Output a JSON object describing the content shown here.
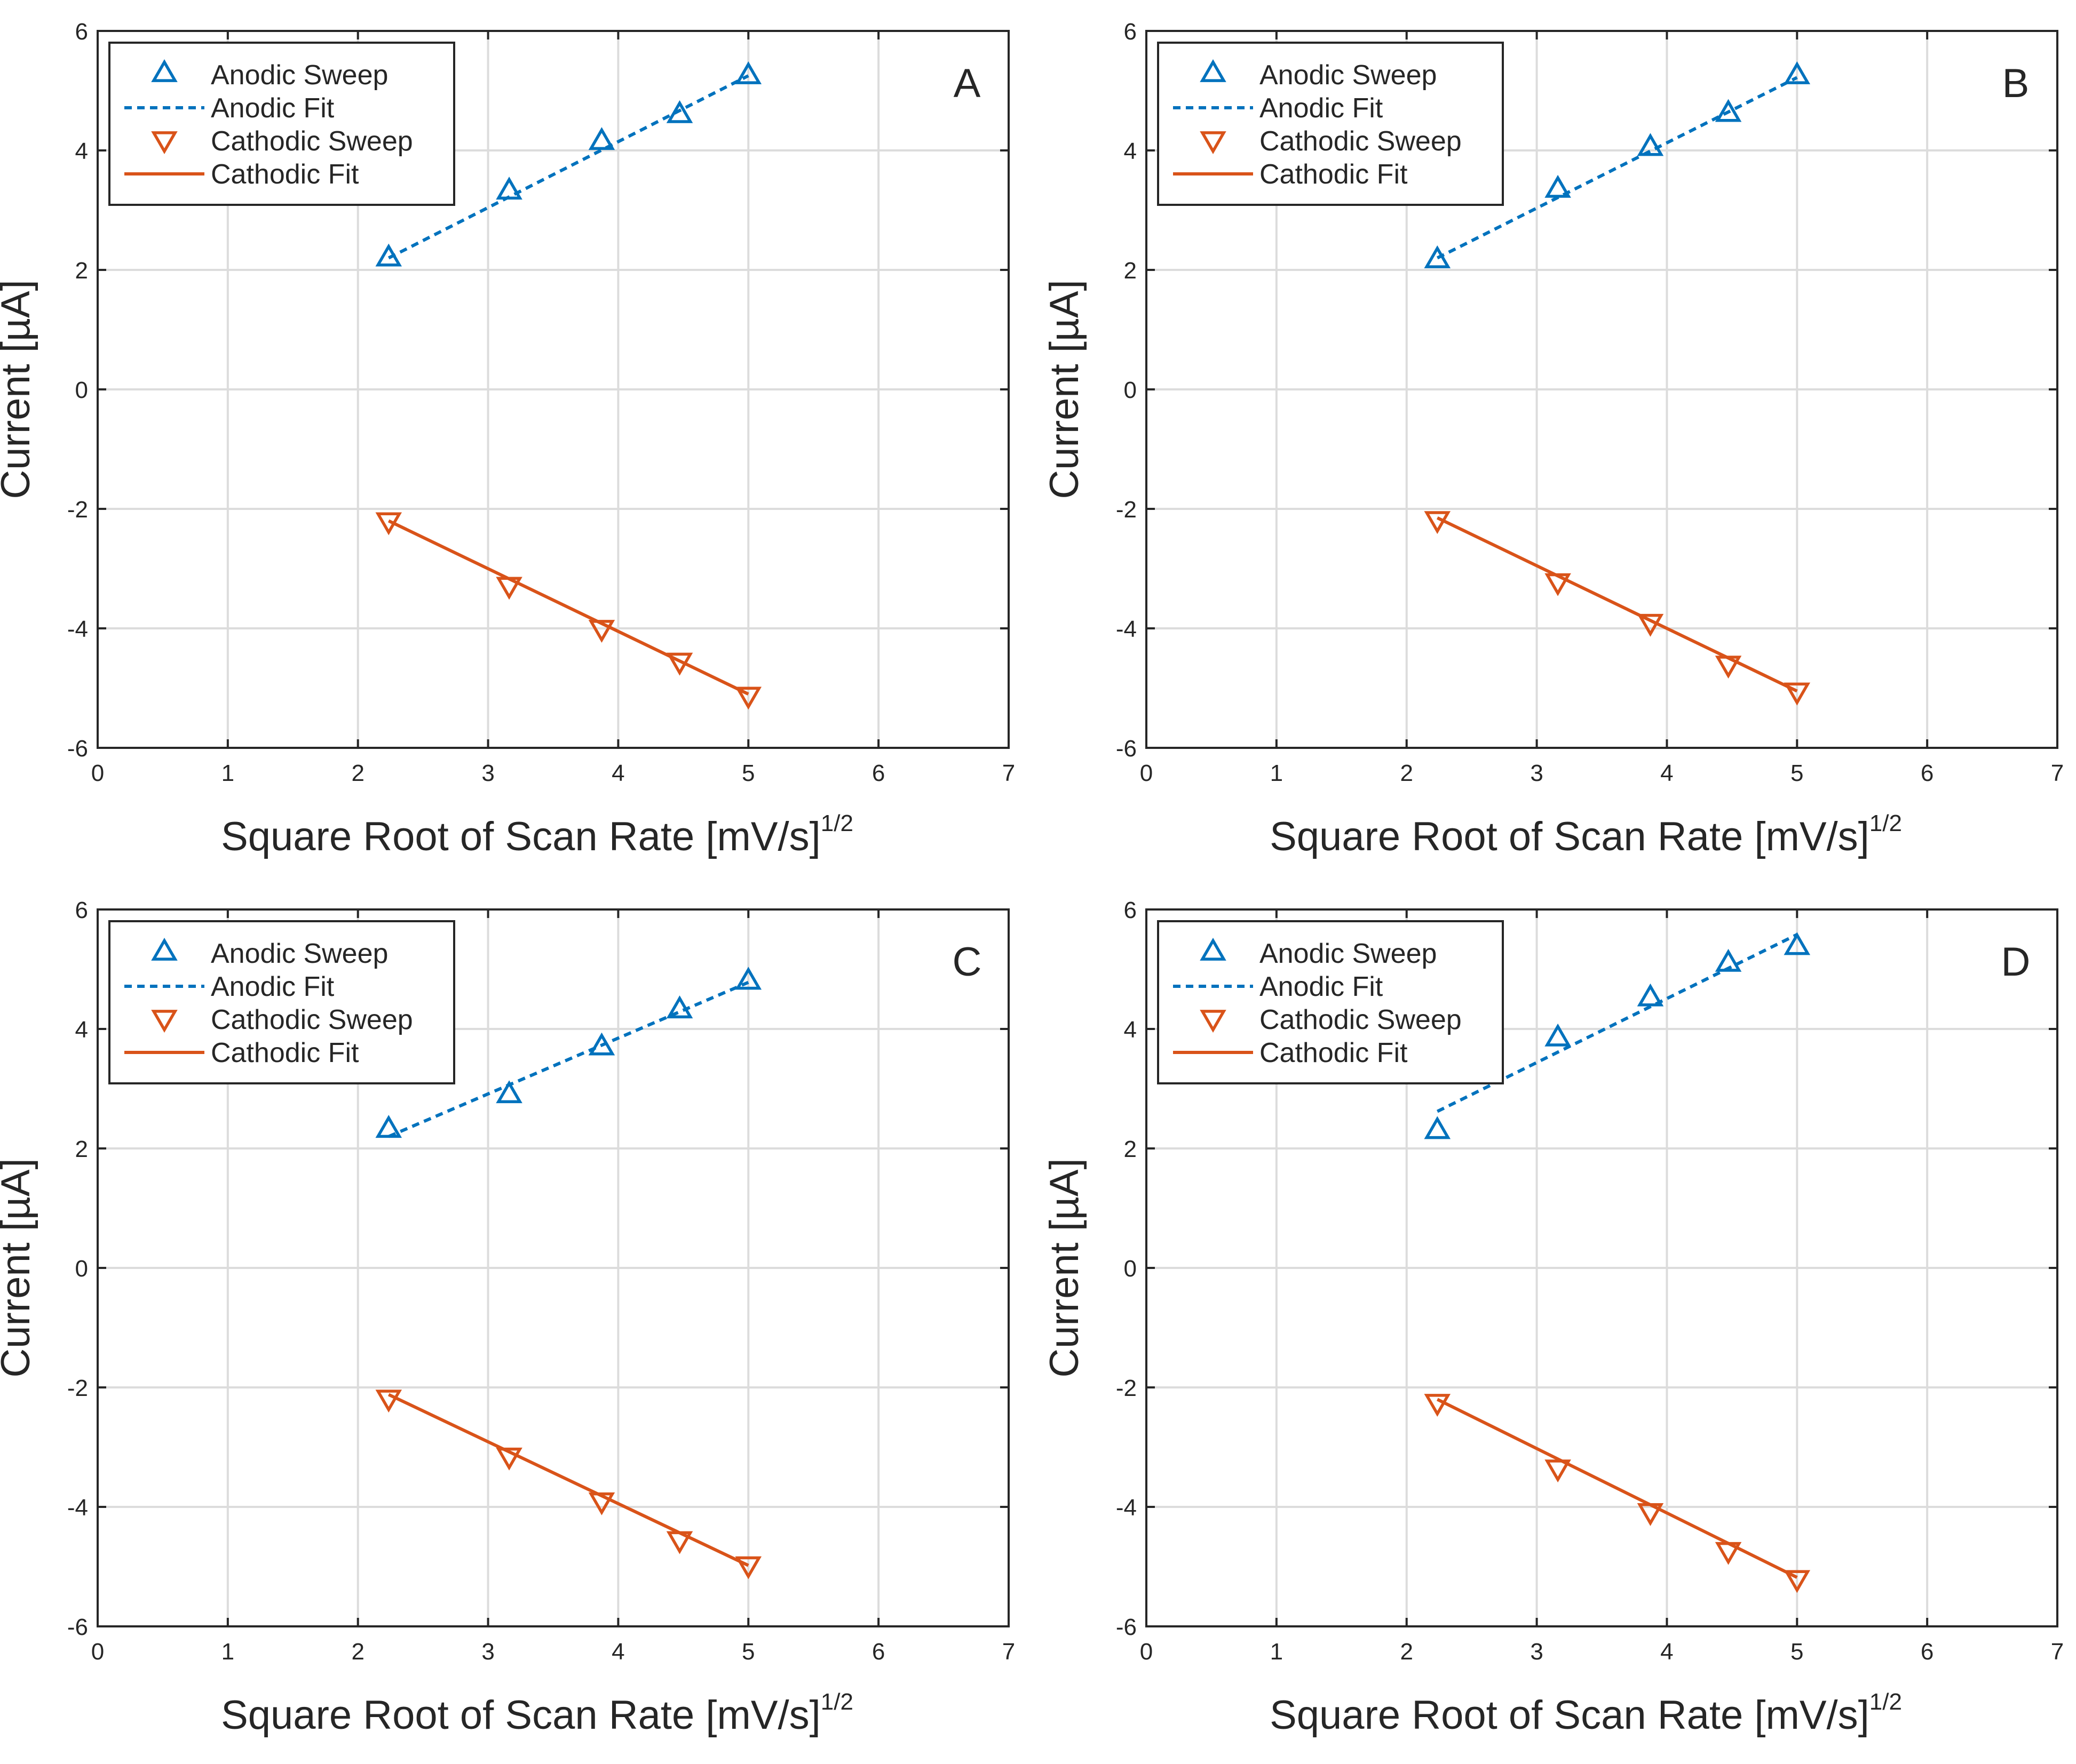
{
  "colors": {
    "anodic": "#0072BD",
    "cathodic": "#D95319",
    "grid": "#dcdcdc",
    "axis": "#262626"
  },
  "chart_data": [
    {
      "type": "scatter",
      "panel": "A",
      "xlabel": "Square Root of Scan Rate [mV/s]",
      "xlabel_sup": "1/2",
      "ylabel": "Current [µA]",
      "xlim": [
        0,
        7
      ],
      "ylim": [
        -6,
        6
      ],
      "xticks": [
        "0",
        "1",
        "2",
        "3",
        "4",
        "5",
        "6",
        "7"
      ],
      "yticks": [
        "-6",
        "-4",
        "-2",
        "0",
        "2",
        "4",
        "6"
      ],
      "grid": true,
      "legend_position": "top-left",
      "series": [
        {
          "name": "Anodic Sweep",
          "kind": "markers",
          "marker": "triangle-up",
          "color": "anodic",
          "x": [
            2.236,
            3.162,
            3.873,
            4.472,
            5.0
          ],
          "y": [
            2.2,
            3.32,
            4.15,
            4.6,
            5.25
          ]
        },
        {
          "name": "Anodic Fit",
          "kind": "dashed-line",
          "color": "anodic",
          "x": [
            2.236,
            5.0
          ],
          "y": [
            2.2,
            5.25
          ]
        },
        {
          "name": "Cathodic Sweep",
          "kind": "markers",
          "marker": "triangle-down",
          "color": "cathodic",
          "x": [
            2.236,
            3.162,
            3.873,
            4.472,
            5.0
          ],
          "y": [
            -2.2,
            -3.28,
            -4.0,
            -4.55,
            -5.12
          ]
        },
        {
          "name": "Cathodic Fit",
          "kind": "solid-line",
          "color": "cathodic",
          "x": [
            2.236,
            5.0
          ],
          "y": [
            -2.2,
            -5.1
          ]
        }
      ]
    },
    {
      "type": "scatter",
      "panel": "B",
      "xlabel": "Square Root of Scan Rate [mV/s]",
      "xlabel_sup": "1/2",
      "ylabel": "Current [µA]",
      "xlim": [
        0,
        7
      ],
      "ylim": [
        -6,
        6
      ],
      "xticks": [
        "0",
        "1",
        "2",
        "3",
        "4",
        "5",
        "6",
        "7"
      ],
      "yticks": [
        "-6",
        "-4",
        "-2",
        "0",
        "2",
        "4",
        "6"
      ],
      "grid": true,
      "legend_position": "top-left",
      "series": [
        {
          "name": "Anodic Sweep",
          "kind": "markers",
          "marker": "triangle-up",
          "color": "anodic",
          "x": [
            2.236,
            3.162,
            3.873,
            4.472,
            5.0
          ],
          "y": [
            2.17,
            3.35,
            4.05,
            4.62,
            5.25
          ]
        },
        {
          "name": "Anodic Fit",
          "kind": "dashed-line",
          "color": "anodic",
          "x": [
            2.236,
            5.0
          ],
          "y": [
            2.2,
            5.22
          ]
        },
        {
          "name": "Cathodic Sweep",
          "kind": "markers",
          "marker": "triangle-down",
          "color": "cathodic",
          "x": [
            2.236,
            3.162,
            3.873,
            4.472,
            5.0
          ],
          "y": [
            -2.18,
            -3.22,
            -3.9,
            -4.6,
            -5.05
          ]
        },
        {
          "name": "Cathodic Fit",
          "kind": "solid-line",
          "color": "cathodic",
          "x": [
            2.236,
            5.0
          ],
          "y": [
            -2.15,
            -5.05
          ]
        }
      ]
    },
    {
      "type": "scatter",
      "panel": "C",
      "xlabel": "Square Root of Scan Rate [mV/s]",
      "xlabel_sup": "1/2",
      "ylabel": "Current [µA]",
      "xlim": [
        0,
        7
      ],
      "ylim": [
        -6,
        6
      ],
      "xticks": [
        "0",
        "1",
        "2",
        "3",
        "4",
        "5",
        "6",
        "7"
      ],
      "yticks": [
        "-6",
        "-4",
        "-2",
        "0",
        "2",
        "4",
        "6"
      ],
      "grid": true,
      "legend_position": "top-left",
      "series": [
        {
          "name": "Anodic Sweep",
          "kind": "markers",
          "marker": "triangle-up",
          "color": "anodic",
          "x": [
            2.236,
            3.162,
            3.873,
            4.472,
            5.0
          ],
          "y": [
            2.32,
            2.9,
            3.7,
            4.32,
            4.8
          ]
        },
        {
          "name": "Anodic Fit",
          "kind": "dashed-line",
          "color": "anodic",
          "x": [
            2.236,
            5.0
          ],
          "y": [
            2.2,
            4.78
          ]
        },
        {
          "name": "Cathodic Sweep",
          "kind": "markers",
          "marker": "triangle-down",
          "color": "cathodic",
          "x": [
            2.236,
            3.162,
            3.873,
            4.472,
            5.0
          ],
          "y": [
            -2.18,
            -3.15,
            -3.9,
            -4.55,
            -4.97
          ]
        },
        {
          "name": "Cathodic Fit",
          "kind": "solid-line",
          "color": "cathodic",
          "x": [
            2.236,
            5.0
          ],
          "y": [
            -2.12,
            -4.98
          ]
        }
      ]
    },
    {
      "type": "scatter",
      "panel": "D",
      "xlabel": "Square Root of Scan Rate [mV/s]",
      "xlabel_sup": "1/2",
      "ylabel": "Current [µA]",
      "xlim": [
        0,
        7
      ],
      "ylim": [
        -6,
        6
      ],
      "xticks": [
        "0",
        "1",
        "2",
        "3",
        "4",
        "5",
        "6",
        "7"
      ],
      "yticks": [
        "-6",
        "-4",
        "-2",
        "0",
        "2",
        "4",
        "6"
      ],
      "grid": true,
      "legend_position": "top-left",
      "series": [
        {
          "name": "Anodic Sweep",
          "kind": "markers",
          "marker": "triangle-up",
          "color": "anodic",
          "x": [
            2.236,
            3.162,
            3.873,
            4.472,
            5.0
          ],
          "y": [
            2.3,
            3.85,
            4.52,
            5.1,
            5.38
          ]
        },
        {
          "name": "Anodic Fit",
          "kind": "dashed-line",
          "color": "anodic",
          "x": [
            2.236,
            5.0
          ],
          "y": [
            2.62,
            5.58
          ]
        },
        {
          "name": "Cathodic Sweep",
          "kind": "markers",
          "marker": "triangle-down",
          "color": "cathodic",
          "x": [
            2.236,
            3.162,
            3.873,
            4.472,
            5.0
          ],
          "y": [
            -2.25,
            -3.35,
            -4.08,
            -4.73,
            -5.2
          ]
        },
        {
          "name": "Cathodic Fit",
          "kind": "solid-line",
          "color": "cathodic",
          "x": [
            2.236,
            5.0
          ],
          "y": [
            -2.2,
            -5.18
          ]
        }
      ]
    }
  ]
}
